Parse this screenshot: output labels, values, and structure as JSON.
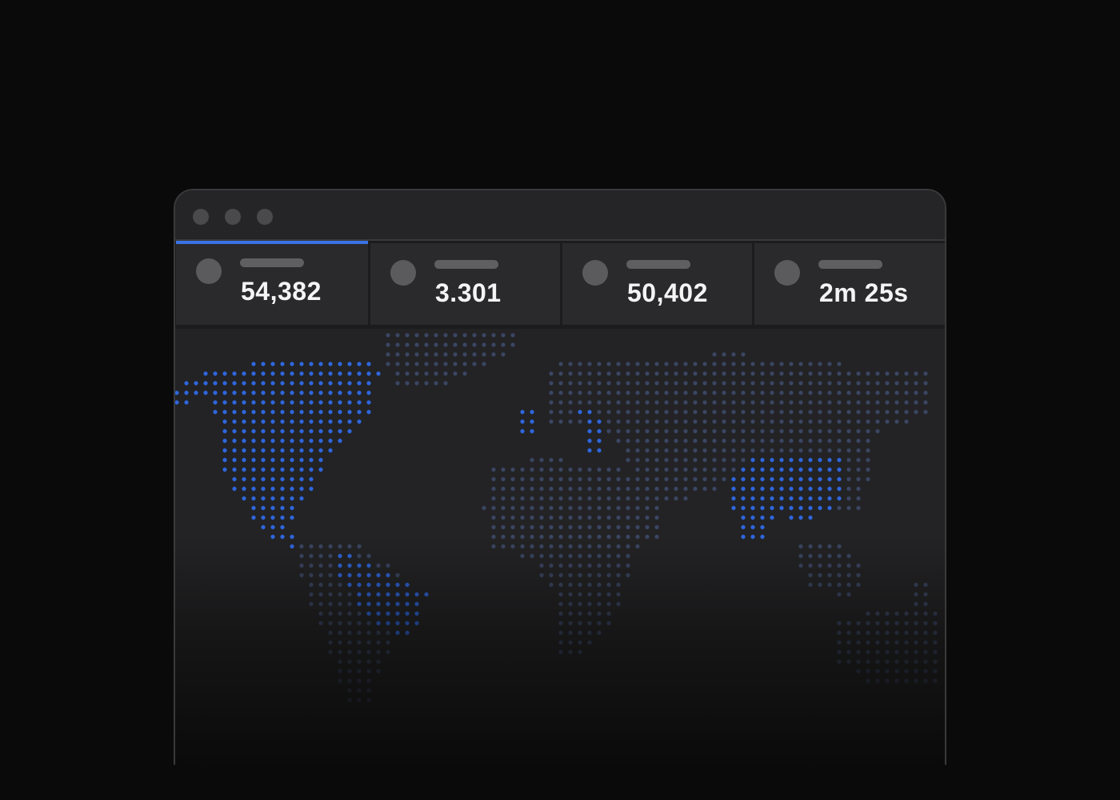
{
  "window": {
    "controls": [
      "window-close-dot",
      "window-minimize-dot",
      "window-zoom-dot"
    ]
  },
  "stats": [
    {
      "value": "54,382",
      "icon": "metric-avatar-icon",
      "active": true
    },
    {
      "value": "3.301",
      "icon": "metric-avatar-icon",
      "active": false
    },
    {
      "value": "50,402",
      "icon": "metric-avatar-icon",
      "active": false
    },
    {
      "value": "2m 25s",
      "icon": "metric-avatar-icon",
      "active": false
    }
  ],
  "colors": {
    "accent": "#3b73e6",
    "highlight_dot": "#2f66de",
    "muted_dot": "#3a4662",
    "page_background": "#0a0a0a",
    "window_background": "#232325"
  },
  "map": {
    "highlighted_regions": [
      "North America",
      "Central America",
      "South America (north)",
      "Western Europe / Mediterranean",
      "China / South Asia"
    ]
  }
}
